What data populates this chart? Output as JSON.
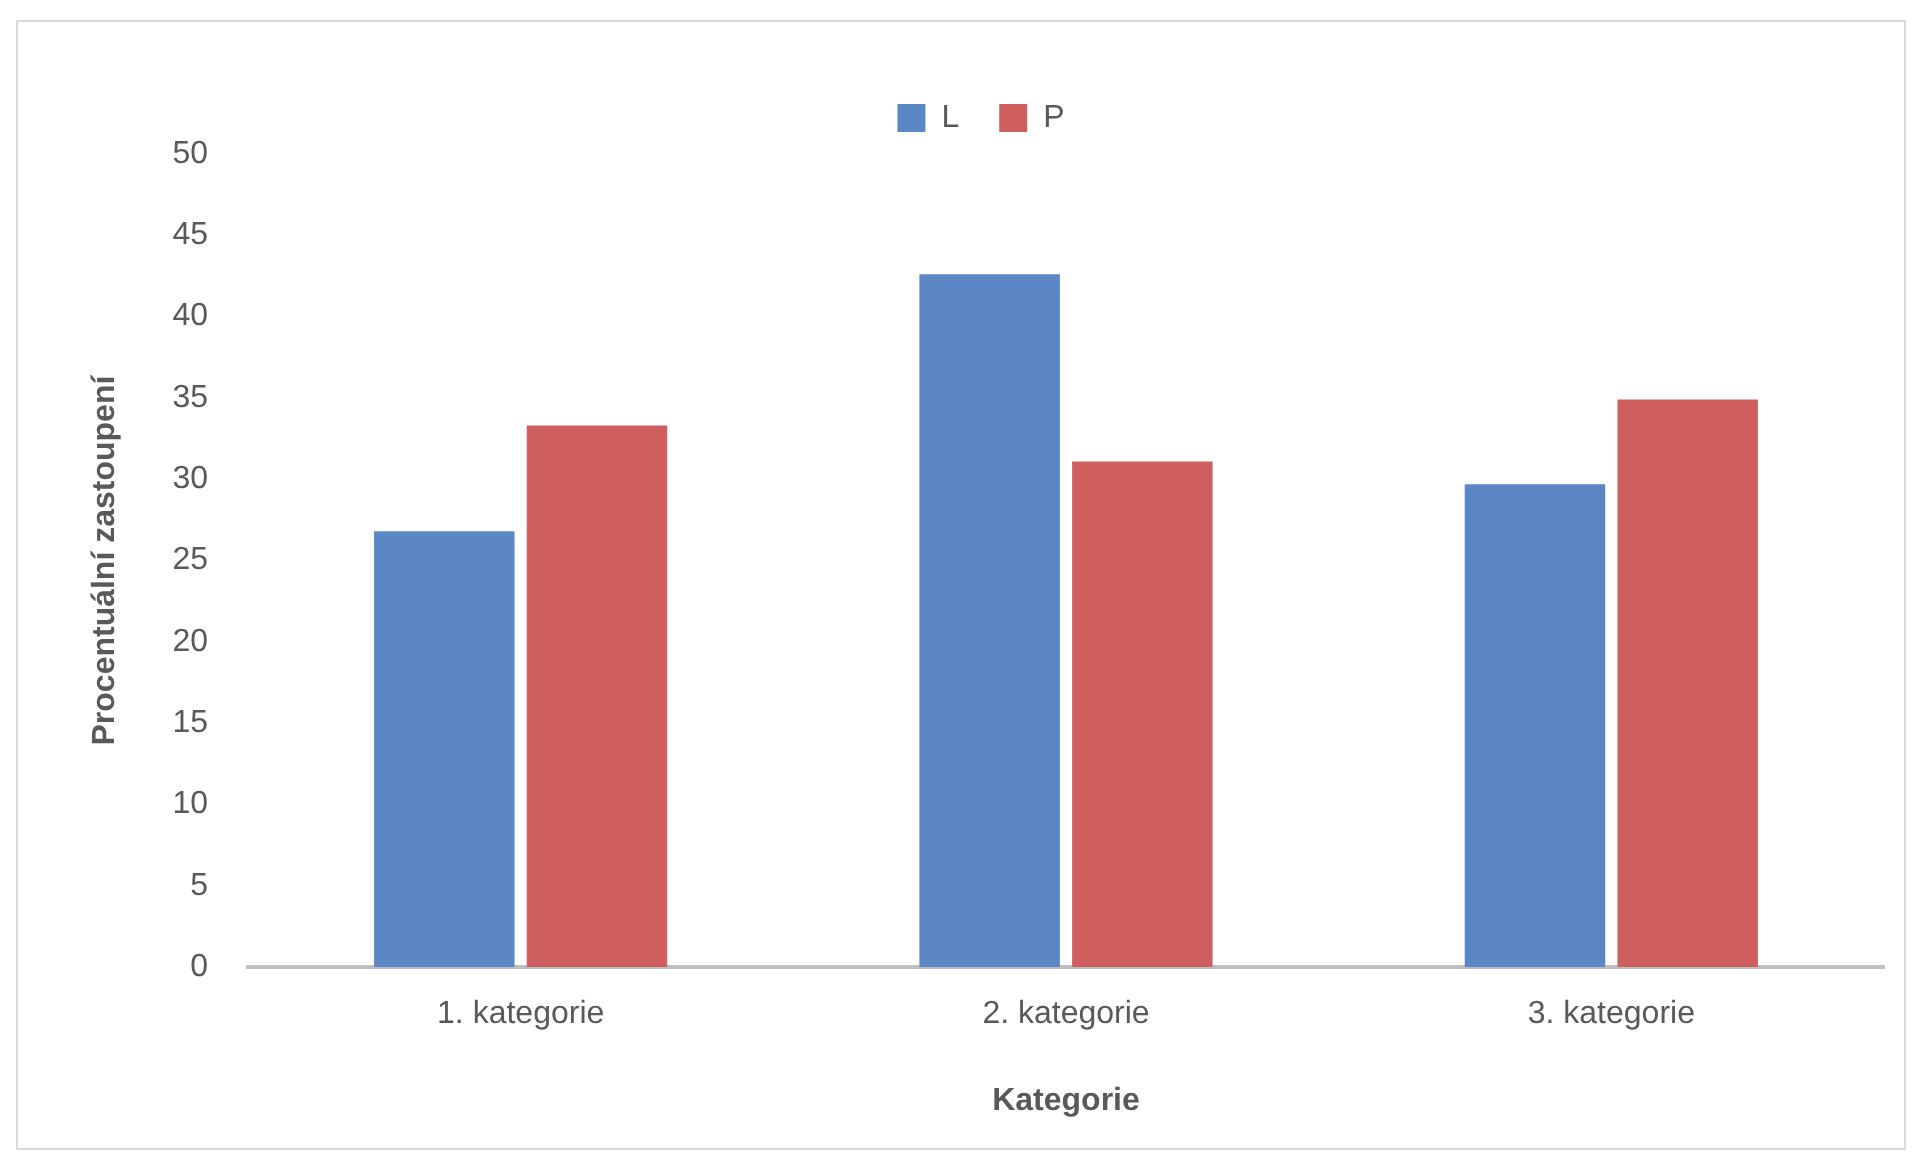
{
  "chart_data": {
    "type": "bar",
    "xlabel": "Kategorie",
    "ylabel": "Procentuální zastoupení",
    "categories": [
      "1. kategorie",
      "2. kategorie",
      "3. kategorie"
    ],
    "series": [
      {
        "name": "L",
        "color": "#5b87c5",
        "values": [
          26.8,
          42.6,
          29.7
        ]
      },
      {
        "name": "P",
        "color": "#cf5f5f",
        "values": [
          33.3,
          31.1,
          34.9
        ]
      }
    ],
    "ylim": [
      0,
      50
    ],
    "yticks": [
      0,
      5,
      10,
      15,
      20,
      25,
      30,
      35,
      40,
      45,
      50
    ],
    "grid": false,
    "legend": "top"
  }
}
